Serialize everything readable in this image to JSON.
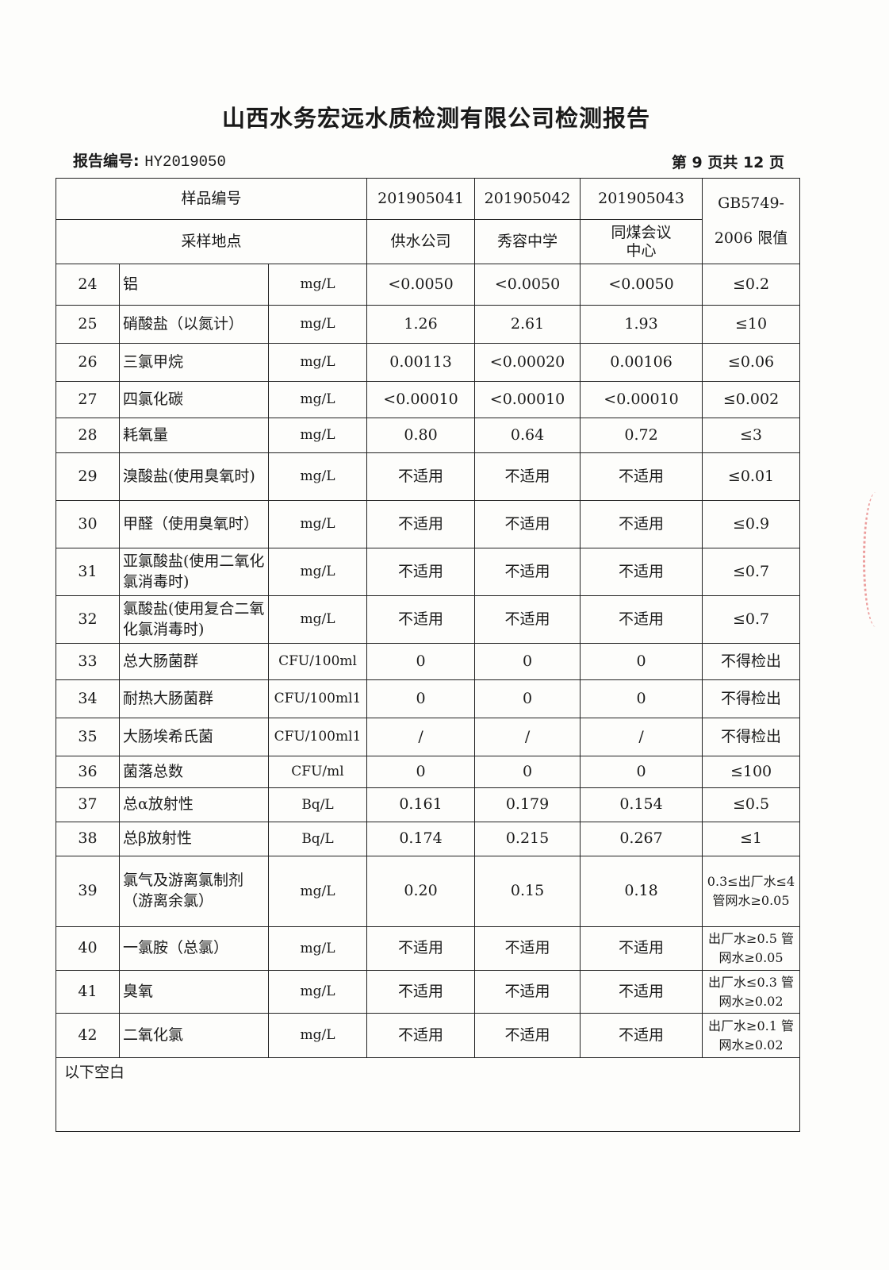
{
  "title": "山西水务宏远水质检测有限公司检测报告",
  "report_no_label": "报告编号:",
  "report_no": "HY2019050",
  "page_info": "第 9 页共 12 页",
  "header": {
    "sample_no_label": "样品编号",
    "sample_nos": [
      "201905041",
      "201905042",
      "201905043"
    ],
    "standard_line1": "GB5749-",
    "standard_line2": "2006 限值",
    "site_label": "采样地点",
    "sites": [
      "供水公司",
      "秀容中学",
      "同煤会议中心"
    ]
  },
  "rows": [
    {
      "no": "24",
      "item": "铝",
      "unit": "mg/L",
      "values": [
        "<0.0050",
        "<0.0050",
        "<0.0050"
      ],
      "limit": "≤0.2"
    },
    {
      "no": "25",
      "item": "硝酸盐（以氮计）",
      "unit": "mg/L",
      "values": [
        "1.26",
        "2.61",
        "1.93"
      ],
      "limit": "≤10"
    },
    {
      "no": "26",
      "item": "三氯甲烷",
      "unit": "mg/L",
      "values": [
        "0.00113",
        "<0.00020",
        "0.00106"
      ],
      "limit": "≤0.06"
    },
    {
      "no": "27",
      "item": "四氯化碳",
      "unit": "mg/L",
      "values": [
        "<0.00010",
        "<0.00010",
        "<0.00010"
      ],
      "limit": "≤0.002"
    },
    {
      "no": "28",
      "item": "耗氧量",
      "unit": "mg/L",
      "values": [
        "0.80",
        "0.64",
        "0.72"
      ],
      "limit": "≤3"
    },
    {
      "no": "29",
      "item": "溴酸盐(使用臭氧时)",
      "unit": "mg/L",
      "values": [
        "不适用",
        "不适用",
        "不适用"
      ],
      "limit": "≤0.01"
    },
    {
      "no": "30",
      "item": "甲醛（使用臭氧时）",
      "unit": "mg/L",
      "values": [
        "不适用",
        "不适用",
        "不适用"
      ],
      "limit": "≤0.9"
    },
    {
      "no": "31",
      "item": "亚氯酸盐(使用二氧化氯消毒时)",
      "unit": "mg/L",
      "values": [
        "不适用",
        "不适用",
        "不适用"
      ],
      "limit": "≤0.7"
    },
    {
      "no": "32",
      "item": "氯酸盐(使用复合二氧化氯消毒时)",
      "unit": "mg/L",
      "values": [
        "不适用",
        "不适用",
        "不适用"
      ],
      "limit": "≤0.7"
    },
    {
      "no": "33",
      "item": "总大肠菌群",
      "unit": "CFU/100ml",
      "values": [
        "0",
        "0",
        "0"
      ],
      "limit": "不得检出"
    },
    {
      "no": "34",
      "item": "耐热大肠菌群",
      "unit": "CFU/100ml1",
      "values": [
        "0",
        "0",
        "0"
      ],
      "limit": "不得检出"
    },
    {
      "no": "35",
      "item": "大肠埃希氏菌",
      "unit": "CFU/100ml1",
      "values": [
        "/",
        "/",
        "/"
      ],
      "limit": "不得检出"
    },
    {
      "no": "36",
      "item": "菌落总数",
      "unit": "CFU/ml",
      "values": [
        "0",
        "0",
        "0"
      ],
      "limit": "≤100"
    },
    {
      "no": "37",
      "item": "总α放射性",
      "unit": "Bq/L",
      "values": [
        "0.161",
        "0.179",
        "0.154"
      ],
      "limit": "≤0.5"
    },
    {
      "no": "38",
      "item": "总β放射性",
      "unit": "Bq/L",
      "values": [
        "0.174",
        "0.215",
        "0.267"
      ],
      "limit": "≤1"
    },
    {
      "no": "39",
      "item": "氯气及游离氯制剂（游离余氯）",
      "unit": "mg/L",
      "values": [
        "0.20",
        "0.15",
        "0.18"
      ],
      "limit": "0.3≤出厂水≤4 管网水≥0.05"
    },
    {
      "no": "40",
      "item": "一氯胺（总氯）",
      "unit": "mg/L",
      "values": [
        "不适用",
        "不适用",
        "不适用"
      ],
      "limit": "出厂水≥0.5 管网水≥0.05"
    },
    {
      "no": "41",
      "item": "臭氧",
      "unit": "mg/L",
      "values": [
        "不适用",
        "不适用",
        "不适用"
      ],
      "limit": "出厂水≤0.3 管网水≥0.02"
    },
    {
      "no": "42",
      "item": "二氧化氯",
      "unit": "mg/L",
      "values": [
        "不适用",
        "不适用",
        "不适用"
      ],
      "limit": "出厂水≥0.1 管网水≥0.02"
    }
  ],
  "footer_note": "以下空白"
}
